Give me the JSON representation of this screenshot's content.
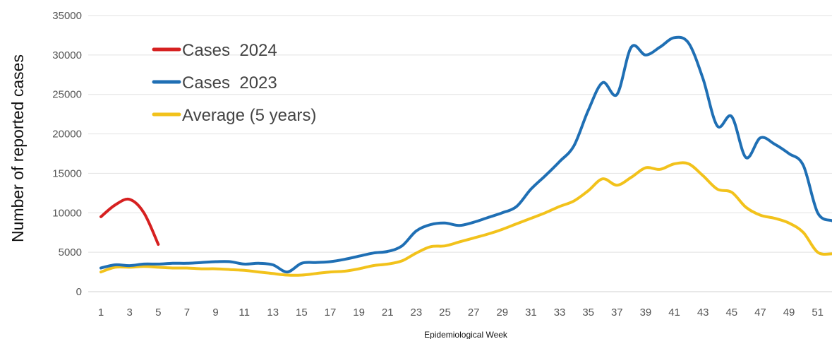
{
  "chart_data": {
    "type": "line",
    "xlabel": "Epidemiological Week",
    "ylabel": "Number of reported cases",
    "ylim": [
      0,
      35000
    ],
    "yticks": [
      0,
      5000,
      10000,
      15000,
      20000,
      25000,
      30000,
      35000
    ],
    "xlim": [
      1,
      52
    ],
    "xticks": [
      1,
      3,
      5,
      7,
      9,
      11,
      13,
      15,
      17,
      19,
      21,
      23,
      25,
      27,
      29,
      31,
      33,
      35,
      37,
      39,
      41,
      43,
      45,
      47,
      49,
      51
    ],
    "grid": "horizontal",
    "legend_position": "top-left",
    "series": [
      {
        "name": "Cases  2024",
        "color": "#d62020",
        "x": [
          1,
          2,
          3,
          4,
          5
        ],
        "values": [
          9500,
          11000,
          11700,
          10000,
          6000
        ]
      },
      {
        "name": "Cases  2023",
        "color": "#1f6fb4",
        "x": [
          1,
          2,
          3,
          4,
          5,
          6,
          7,
          8,
          9,
          10,
          11,
          12,
          13,
          14,
          15,
          16,
          17,
          18,
          19,
          20,
          21,
          22,
          23,
          24,
          25,
          26,
          27,
          28,
          29,
          30,
          31,
          32,
          33,
          34,
          35,
          36,
          37,
          38,
          39,
          40,
          41,
          42,
          43,
          44,
          45,
          46,
          47,
          48,
          49,
          50,
          51,
          52
        ],
        "values": [
          3000,
          3400,
          3300,
          3500,
          3500,
          3600,
          3600,
          3700,
          3800,
          3800,
          3500,
          3600,
          3400,
          2500,
          3600,
          3700,
          3800,
          4100,
          4500,
          4900,
          5100,
          5800,
          7700,
          8500,
          8700,
          8400,
          8800,
          9400,
          10000,
          10800,
          13000,
          14700,
          16500,
          18500,
          23000,
          26500,
          25000,
          31000,
          30000,
          31000,
          32200,
          31500,
          27000,
          21000,
          22200,
          17000,
          19500,
          18700,
          17500,
          16000,
          10000,
          9000
        ]
      },
      {
        "name": "Average (5 years)",
        "color": "#f2c21b",
        "x": [
          1,
          2,
          3,
          4,
          5,
          6,
          7,
          8,
          9,
          10,
          11,
          12,
          13,
          14,
          15,
          16,
          17,
          18,
          19,
          20,
          21,
          22,
          23,
          24,
          25,
          26,
          27,
          28,
          29,
          30,
          31,
          32,
          33,
          34,
          35,
          36,
          37,
          38,
          39,
          40,
          41,
          42,
          43,
          44,
          45,
          46,
          47,
          48,
          49,
          50,
          51,
          52
        ],
        "values": [
          2500,
          3100,
          3100,
          3200,
          3100,
          3000,
          3000,
          2900,
          2900,
          2800,
          2700,
          2500,
          2300,
          2100,
          2100,
          2300,
          2500,
          2600,
          2900,
          3300,
          3500,
          3900,
          4900,
          5700,
          5800,
          6300,
          6800,
          7300,
          7900,
          8600,
          9300,
          10000,
          10800,
          11500,
          12800,
          14300,
          13500,
          14500,
          15700,
          15500,
          16200,
          16200,
          14700,
          13000,
          12600,
          10700,
          9700,
          9300,
          8700,
          7500,
          5000,
          4800
        ]
      }
    ]
  }
}
